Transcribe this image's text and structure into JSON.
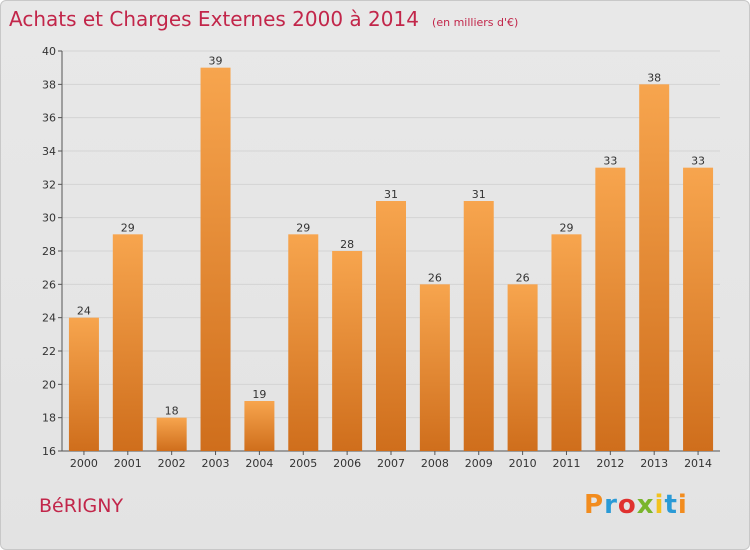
{
  "title": "Achats et Charges Externes 2000 à 2014",
  "subtitle": "(en milliers d'€)",
  "commune": "BéRIGNY",
  "brand": {
    "letters": [
      "P",
      "r",
      "o",
      "x",
      "i",
      "t",
      "i"
    ],
    "colors": [
      "#f28c1e",
      "#2a9ad6",
      "#e0312f",
      "#7ab52c",
      "#f2c21e",
      "#2a9ad6",
      "#f28c1e"
    ]
  },
  "colors": {
    "bar_top": "#f7a54e",
    "bar_bottom": "#cf6e1c",
    "accent": "#c2264a"
  },
  "chart_data": {
    "type": "bar",
    "categories": [
      "2000",
      "2001",
      "2002",
      "2003",
      "2004",
      "2005",
      "2006",
      "2007",
      "2008",
      "2009",
      "2010",
      "2011",
      "2012",
      "2013",
      "2014"
    ],
    "values": [
      24,
      29,
      18,
      39,
      19,
      29,
      28,
      31,
      26,
      31,
      26,
      29,
      33,
      38,
      33
    ],
    "ylim": [
      16,
      40
    ],
    "yticks": [
      16,
      18,
      20,
      22,
      24,
      26,
      28,
      30,
      32,
      34,
      36,
      38,
      40
    ],
    "grid": true,
    "title": "Achats et Charges Externes 2000 à 2014",
    "xlabel": "",
    "ylabel": ""
  }
}
